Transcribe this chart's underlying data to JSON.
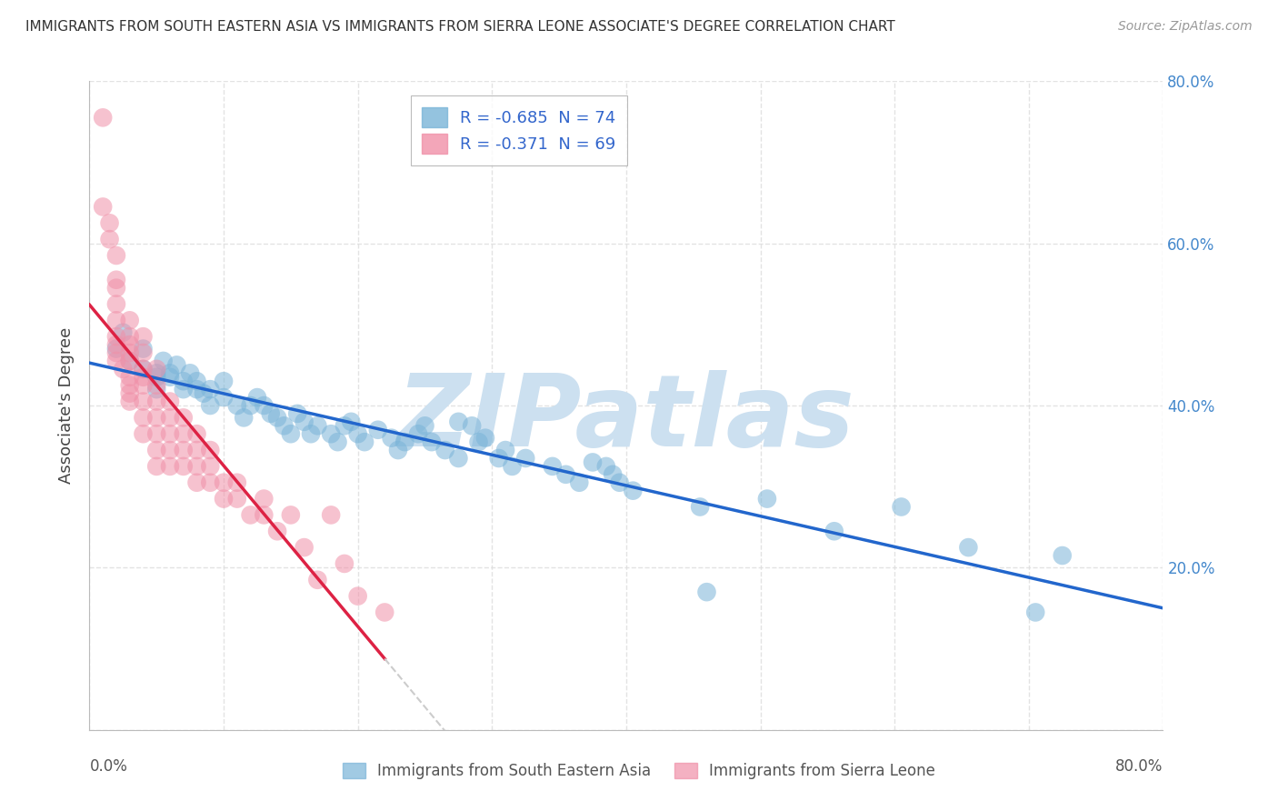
{
  "title": "IMMIGRANTS FROM SOUTH EASTERN ASIA VS IMMIGRANTS FROM SIERRA LEONE ASSOCIATE'S DEGREE CORRELATION CHART",
  "source": "Source: ZipAtlas.com",
  "xlabel_bottom": [
    "Immigrants from South Eastern Asia",
    "Immigrants from Sierra Leone"
  ],
  "ylabel": "Associate's Degree",
  "legend": [
    {
      "label": "R = -0.685  N = 74",
      "color": "#aac8e8"
    },
    {
      "label": "R = -0.371  N = 69",
      "color": "#f4a8b8"
    }
  ],
  "xlim": [
    0,
    0.8
  ],
  "ylim": [
    0,
    0.8
  ],
  "ytick_vals": [
    0.0,
    0.2,
    0.4,
    0.6,
    0.8
  ],
  "yticklabels_right": [
    "",
    "20.0%",
    "40.0%",
    "60.0%",
    "80.0%"
  ],
  "blue_scatter": [
    [
      0.02,
      0.47
    ],
    [
      0.025,
      0.49
    ],
    [
      0.03,
      0.455
    ],
    [
      0.04,
      0.445
    ],
    [
      0.04,
      0.47
    ],
    [
      0.05,
      0.44
    ],
    [
      0.05,
      0.435
    ],
    [
      0.05,
      0.42
    ],
    [
      0.055,
      0.455
    ],
    [
      0.06,
      0.44
    ],
    [
      0.06,
      0.435
    ],
    [
      0.065,
      0.45
    ],
    [
      0.07,
      0.42
    ],
    [
      0.07,
      0.43
    ],
    [
      0.075,
      0.44
    ],
    [
      0.08,
      0.43
    ],
    [
      0.08,
      0.42
    ],
    [
      0.085,
      0.415
    ],
    [
      0.09,
      0.42
    ],
    [
      0.09,
      0.4
    ],
    [
      0.1,
      0.41
    ],
    [
      0.1,
      0.43
    ],
    [
      0.11,
      0.4
    ],
    [
      0.115,
      0.385
    ],
    [
      0.12,
      0.4
    ],
    [
      0.125,
      0.41
    ],
    [
      0.13,
      0.4
    ],
    [
      0.135,
      0.39
    ],
    [
      0.14,
      0.385
    ],
    [
      0.145,
      0.375
    ],
    [
      0.15,
      0.365
    ],
    [
      0.155,
      0.39
    ],
    [
      0.16,
      0.38
    ],
    [
      0.165,
      0.365
    ],
    [
      0.17,
      0.375
    ],
    [
      0.18,
      0.365
    ],
    [
      0.185,
      0.355
    ],
    [
      0.19,
      0.375
    ],
    [
      0.195,
      0.38
    ],
    [
      0.2,
      0.365
    ],
    [
      0.205,
      0.355
    ],
    [
      0.215,
      0.37
    ],
    [
      0.225,
      0.36
    ],
    [
      0.23,
      0.345
    ],
    [
      0.235,
      0.355
    ],
    [
      0.245,
      0.365
    ],
    [
      0.25,
      0.375
    ],
    [
      0.255,
      0.355
    ],
    [
      0.265,
      0.345
    ],
    [
      0.275,
      0.335
    ],
    [
      0.275,
      0.38
    ],
    [
      0.285,
      0.375
    ],
    [
      0.29,
      0.355
    ],
    [
      0.295,
      0.36
    ],
    [
      0.305,
      0.335
    ],
    [
      0.31,
      0.345
    ],
    [
      0.315,
      0.325
    ],
    [
      0.325,
      0.335
    ],
    [
      0.345,
      0.325
    ],
    [
      0.355,
      0.315
    ],
    [
      0.365,
      0.305
    ],
    [
      0.375,
      0.33
    ],
    [
      0.385,
      0.325
    ],
    [
      0.39,
      0.315
    ],
    [
      0.395,
      0.305
    ],
    [
      0.405,
      0.295
    ],
    [
      0.455,
      0.275
    ],
    [
      0.46,
      0.17
    ],
    [
      0.505,
      0.285
    ],
    [
      0.555,
      0.245
    ],
    [
      0.605,
      0.275
    ],
    [
      0.655,
      0.225
    ],
    [
      0.705,
      0.145
    ],
    [
      0.725,
      0.215
    ]
  ],
  "pink_scatter": [
    [
      0.01,
      0.755
    ],
    [
      0.01,
      0.645
    ],
    [
      0.015,
      0.625
    ],
    [
      0.015,
      0.605
    ],
    [
      0.02,
      0.585
    ],
    [
      0.02,
      0.555
    ],
    [
      0.02,
      0.545
    ],
    [
      0.02,
      0.525
    ],
    [
      0.02,
      0.505
    ],
    [
      0.02,
      0.485
    ],
    [
      0.02,
      0.475
    ],
    [
      0.02,
      0.465
    ],
    [
      0.02,
      0.455
    ],
    [
      0.025,
      0.445
    ],
    [
      0.03,
      0.505
    ],
    [
      0.03,
      0.485
    ],
    [
      0.03,
      0.475
    ],
    [
      0.03,
      0.465
    ],
    [
      0.03,
      0.455
    ],
    [
      0.03,
      0.435
    ],
    [
      0.03,
      0.425
    ],
    [
      0.03,
      0.415
    ],
    [
      0.03,
      0.405
    ],
    [
      0.04,
      0.485
    ],
    [
      0.04,
      0.465
    ],
    [
      0.04,
      0.445
    ],
    [
      0.04,
      0.435
    ],
    [
      0.04,
      0.425
    ],
    [
      0.04,
      0.405
    ],
    [
      0.04,
      0.385
    ],
    [
      0.04,
      0.365
    ],
    [
      0.05,
      0.445
    ],
    [
      0.05,
      0.425
    ],
    [
      0.05,
      0.405
    ],
    [
      0.05,
      0.385
    ],
    [
      0.05,
      0.365
    ],
    [
      0.05,
      0.345
    ],
    [
      0.05,
      0.325
    ],
    [
      0.06,
      0.405
    ],
    [
      0.06,
      0.385
    ],
    [
      0.06,
      0.365
    ],
    [
      0.06,
      0.345
    ],
    [
      0.06,
      0.325
    ],
    [
      0.07,
      0.385
    ],
    [
      0.07,
      0.365
    ],
    [
      0.07,
      0.345
    ],
    [
      0.07,
      0.325
    ],
    [
      0.08,
      0.365
    ],
    [
      0.08,
      0.345
    ],
    [
      0.08,
      0.325
    ],
    [
      0.08,
      0.305
    ],
    [
      0.09,
      0.345
    ],
    [
      0.09,
      0.325
    ],
    [
      0.09,
      0.305
    ],
    [
      0.1,
      0.305
    ],
    [
      0.1,
      0.285
    ],
    [
      0.11,
      0.305
    ],
    [
      0.11,
      0.285
    ],
    [
      0.12,
      0.265
    ],
    [
      0.13,
      0.285
    ],
    [
      0.13,
      0.265
    ],
    [
      0.14,
      0.245
    ],
    [
      0.15,
      0.265
    ],
    [
      0.16,
      0.225
    ],
    [
      0.17,
      0.185
    ],
    [
      0.18,
      0.265
    ],
    [
      0.19,
      0.205
    ],
    [
      0.2,
      0.165
    ],
    [
      0.22,
      0.145
    ]
  ],
  "blue_color": "#7ab4d8",
  "pink_color": "#f090a8",
  "blue_line_color": "#2266cc",
  "pink_line_color": "#dd2244",
  "pink_line_dash_color": "#cccccc",
  "watermark": "ZIPatlas",
  "watermark_color": "#cce0f0",
  "background_color": "#ffffff",
  "grid_color": "#dddddd"
}
